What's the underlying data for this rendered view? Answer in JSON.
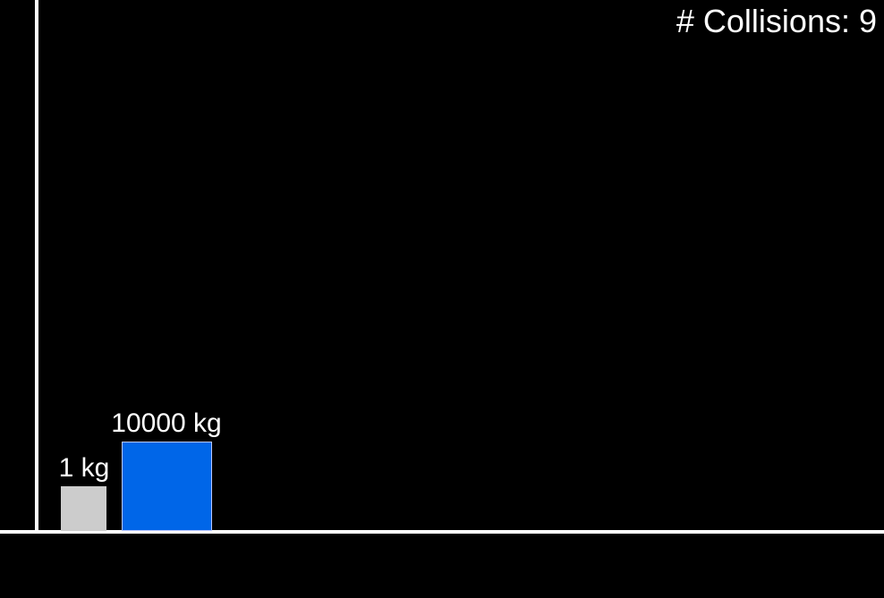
{
  "hud": {
    "collisions_text": "# Collisions: 9"
  },
  "blocks": {
    "small": {
      "mass_label": "1 kg",
      "color": "#cccccc"
    },
    "large": {
      "mass_label": "10000 kg",
      "color": "#0066e8"
    }
  },
  "scene": {
    "background": "#000000",
    "line_color": "#ffffff"
  }
}
